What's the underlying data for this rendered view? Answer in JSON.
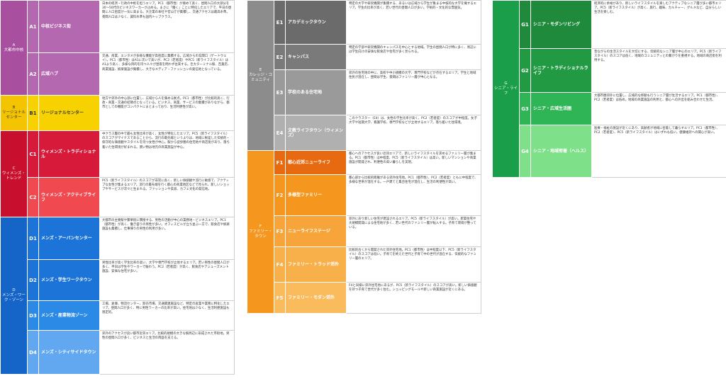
{
  "columns": [
    {
      "left": [
        {
          "group": "A\n大都市中核",
          "color": "#a94fa0",
          "sub": [
            {
              "code": "A1",
              "name": "中核ビジネス街",
              "color": "#b468b0",
              "desc": "日本の経済・行政の中枢を担うエリア。PC1（都市性）が極めて高く、昼間人口の大部分を30〜50代のビジネスワーカーが占める。まさに「働く」ことに特化したエリアで、平日の昼間に人口密度が一気に高まる。大企業の本社や官公庁が集積し、交通アクセスは最高水準。夜間人口は少なく、賃料水準も国内トップクラス。"
            },
            {
              "code": "A2",
              "name": "広域ハブ",
              "color": "#b468b0",
              "desc": "交通、商業、エンタメが多様な機能が高密度に集積する。広域からの玄関口（ゲートウェイ）。PC1（都市性）はA1に次いで高いが、PC2（若者度）やPC5（新ライフスタイル）はA1より高く、多様な目的を持つ人々が昼夜を問わず往来する。巨大ターミナル駅、百貨店、商業施設、娯楽施設が集積し、大きなメディア・ファッションの発信地となっている。"
            }
          ]
        },
        {
          "group": "B\nリージョナルセンター",
          "color": "#f5c400",
          "dark": true,
          "sub": [
            {
              "code": "B1",
              "name": "リージョナルセンター",
              "color": "#f7d200",
              "dark": true,
              "desc": "地方や郊外の中心部に位置し、広域から人を集める拠点。PC1（都市性）が比較的高く、行政・商業・交通の結節点となっている。ビジネス、商業、サービスの集積がありながら、都市としての機能がコンパクトにまとまっており、生活利便性が高い。"
            }
          ]
        },
        {
          "group": "C\nウィメンズ・トレンド",
          "color": "#c8102e",
          "sub": [
            {
              "code": "C1",
              "name": "ウィメンズ・トラディショナル",
              "color": "#d7193a",
              "desc": "中クラス層の中で最も女性比率が高く、女性が特化したエリア。PC5（新ライフスタイル）のスコアがマイナスであることから、流行の最先端というよりは、地域に根差した伝統的・保守的な価値観やスタイルを持つ女性が中心。駅から徒歩圏の住宅地や商店街があり、落ち着いた住環境が好まれる。買い物は地元の商業施設が中心。"
            },
            {
              "code": "C2",
              "name": "ウィメンズ・アクティブライフ",
              "color": "#f0494f",
              "desc": "PC5（新ライフスタイル）のスコアが非常に高く、新しい価値観や流行に敏感で、アクティブな女性が集まるエリア。流行の最先端を行く都心の商業地区などで見られ、新しいショップやサービスが次々と生まれる。ファッションや美容、カフェ文化の発信地。"
            }
          ]
        },
        {
          "group": "D\nメンズ・ワーク・ゾーン",
          "color": "#1565c8",
          "sub": [
            {
              "code": "D1",
              "name": "メンズ・アーバンセンター",
              "color": "#1c74d8",
              "desc": "大都市の主要駅や繁華街に隣接する、男性の活動が中心の業務地・ビジネスエリア。PC1（都市性）が高く、働き盛りの男性が多い。オフィスビルが立ち並ぶ一方で、飲食店や娯楽施設も集積し、仕事帰りの男性の利用が多い。"
            },
            {
              "code": "D2",
              "name": "メンズ・学生ワークタウン",
              "color": "#1c74d8",
              "desc": "男性比率が高く学生比率の高い、大学や専門学校が立地するエリア。若い男性の昼間人口が多く、平日は学生やワーカーで賑わう。PC2（若者度）が高く、飲食店やアミューズメント施設、安価な住宅が多い。"
            },
            {
              "code": "D3",
              "name": "メンズ・産業物流ゾーン",
              "color": "#2a8ae6",
              "desc": "工場、倉庫、物流センター、卸売市場、交通関連施設など、特定の産業や業務に特化したエリア。昼間人口が多く、特に男性ワーカーの比率が高い。住宅地は少なく、生活利便施設も限定的。"
            },
            {
              "code": "D4",
              "name": "メンズ・シティサイドタウン",
              "color": "#62a8f0",
              "desc": "郊外のアクセスが良い都市近郊エリア。比較的規模の大きな駅周辺に形成された市街地。男性の昼間人口が多く、ビジネスと生活の両面を支える。"
            }
          ]
        }
      ]
    },
    {
      "left": [
        {
          "group": "E\nカレッジ・コミュニティ",
          "color": "#8c8c8c",
          "sub": [
            {
              "code": "E1",
              "name": "アカデミックタウン",
              "color": "#6b6b6b",
              "desc": "特定の大学や研究機関が集積する、あるいは広域から学生が集まる中核的な大学を擁するエリア。学生の比率が高く、若い世代の昼間人口が多い。学術的・文化的な雰囲気。"
            },
            {
              "code": "E2",
              "name": "キャンパス",
              "color": "#7a7a7a",
              "desc": "特定の学部や研究機関のキャンパスを中心とする地域。学生の昼間人口が特に多く、周辺には学生向けの安価な飲食店や住宅が多く見られる。"
            },
            {
              "code": "E3",
              "name": "学校のある住宅地",
              "color": "#9a9a9a",
              "desc": "郊外の住宅地の中に、高校や中小規模の大学、専門学校などが点在するエリア。学生と地域住民が混在し、昼間は学生、夜間はファミリー層が中心となる。"
            },
            {
              "code": "E4",
              "name": "文教ライフタウン（ウィメンズ）",
              "color": "#b0b0b0",
              "desc": "このクラスター（E4）は、女性の学生比率が高く、PC2（若者度）のスコアが中程度。女子大学や短期大学、看護学校、専門学校などが立地するエリア。落ち着いた住環境。"
            }
          ]
        },
        {
          "group": "F\nファミリー・タウン",
          "color": "#f5961e",
          "sub": [
            {
              "code": "F1",
              "name": "都心近郊ニューライフ",
              "color": "#e86a10",
              "desc": "都心へのアクセスが良い近郊エリアで、新しいライフスタイルを求めるファミリー層が集まる。PC1（都市性）は中程度、PC5（新ライフスタイル）は高い。新しいマンションや商業施設が開発され、利便性の高い暮らしを実現。"
            },
            {
              "code": "F2",
              "name": "多様型ファミリー",
              "color": "#f5961e",
              "desc": "都心部から比較的距離がある郊外住宅地。PC1（都市性）、PC2（若者度）ともに中程度で、多様な世帯が混在する。一戸建てと集合住宅が混在し、生活の利便性が高い。"
            },
            {
              "code": "F3",
              "name": "ニューライフステージ",
              "color": "#f7a53a",
              "desc": "郊外にあり新しい住宅が建設されるエリア。PC5（新ライフスタイル）が高い。新築住宅や大規模開発による住宅地が多く、若い世代のファミリー層が転入する。子育て環境が整っている。"
            },
            {
              "code": "F4",
              "name": "ファミリー・トラッド郊外",
              "color": "#f8b04a",
              "desc": "比較的古くから開発された郊外住宅地。PC1（都市性）は中程度以下、PC5（新ライフスタイル）のスコアは低い。子育てを終えた世代と子育て中の世代が混在する、伝統的なファミリー層のエリア。"
            },
            {
              "code": "F5",
              "name": "ファミリー・モダン郊外",
              "color": "#f9bb5c",
              "desc": "F4と同様に郊外住宅地にあるが、PC5（新ライフスタイル）のスコアが高い。新しい価値観を持つ子育て世代が多く住む。ショッピングモールや新しい商業施設が近くにある。"
            }
          ]
        }
      ]
    },
    {
      "left": [
        {
          "group": "G\nシニア・ライフ",
          "color": "#1a9e4a",
          "sub": [
            {
              "code": "G1",
              "name": "シニア・モダンリビング",
              "color": "#1f8a3c",
              "desc": "経済的に余裕があり、新しいライフスタイルを楽しむアクティブなシニア層が多い都市エリア。PC5（新ライフスタイル）が高く、旅行、趣味、カルチャー、グルメなど、自分らしい生活を楽しむ。"
            },
            {
              "code": "G2",
              "name": "シニア・トラディショナルライフ",
              "color": "#229a44",
              "desc": "昔ながらの生活スタイルを大切にする、伝統的なシニア層が中心のエリア。PC5（新ライフスタイル）のスコアは低く、地域のコミュニティとの繋がりを重視する。地域の商店街を利用する。"
            },
            {
              "code": "G3",
              "name": "シニア・広域生活圏",
              "color": "#2fb556",
              "desc": "大都市圏郊外に位置し、広域的な移動も行うシニア層が生活するエリア。PC1（都市性）、PC2（若者度）は低め。地域の商業施設の利用と、都心への外出を組み合わせた生活。"
            },
            {
              "code": "G4",
              "name": "シニア・地域密着（ヘルス）",
              "color": "#7ee089",
              "desc": "医療・福祉の施設が近くにあり、高齢者が地域に密着して暮らすエリア。PC1（都市性）、PC2（若者度）、PC5（新ライフスタイル）はいずれも低い。健康維持への関心が高い。"
            }
          ]
        }
      ]
    }
  ]
}
